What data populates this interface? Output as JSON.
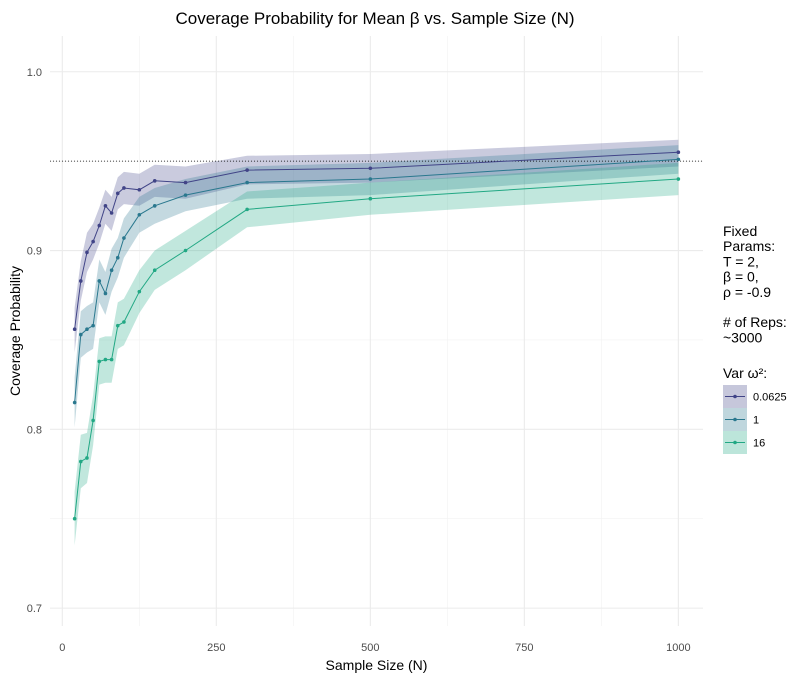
{
  "chart_data": {
    "type": "line",
    "title": "Coverage Probability for Mean β vs. Sample Size (N)",
    "xlabel": "Sample Size (N)",
    "ylabel": "Coverage Probability",
    "xlim": [
      -20,
      1040
    ],
    "ylim": [
      0.69,
      1.02
    ],
    "x_ticks": [
      0,
      250,
      500,
      750,
      1000
    ],
    "x_tick_labels": [
      "0",
      "250",
      "500",
      "750",
      "1000"
    ],
    "y_ticks": [
      0.7,
      0.8,
      0.9,
      1.0
    ],
    "y_tick_labels": [
      "0.7",
      "0.8",
      "0.9",
      "1.0"
    ],
    "grid": true,
    "reference_line": {
      "y": 0.95,
      "style": "dotted"
    },
    "x": [
      20,
      30,
      40,
      50,
      60,
      70,
      80,
      90,
      100,
      125,
      150,
      200,
      300,
      500,
      1000
    ],
    "series": [
      {
        "name": "0.0625",
        "color": "#414487",
        "values": [
          0.856,
          0.883,
          0.899,
          0.905,
          0.914,
          0.925,
          0.921,
          0.932,
          0.935,
          0.934,
          0.939,
          0.938,
          0.945,
          0.946,
          0.955
        ],
        "lower": [
          0.843,
          0.872,
          0.888,
          0.895,
          0.904,
          0.915,
          0.911,
          0.923,
          0.926,
          0.925,
          0.93,
          0.929,
          0.937,
          0.938,
          0.947
        ],
        "upper": [
          0.868,
          0.894,
          0.91,
          0.915,
          0.924,
          0.934,
          0.93,
          0.941,
          0.944,
          0.943,
          0.948,
          0.947,
          0.953,
          0.954,
          0.962
        ]
      },
      {
        "name": "1",
        "color": "#2A788E",
        "values": [
          0.815,
          0.853,
          0.856,
          0.858,
          0.883,
          0.876,
          0.889,
          0.896,
          0.907,
          0.92,
          0.925,
          0.931,
          0.938,
          0.94,
          0.951
        ],
        "lower": [
          0.801,
          0.84,
          0.843,
          0.845,
          0.871,
          0.864,
          0.877,
          0.885,
          0.896,
          0.91,
          0.915,
          0.922,
          0.929,
          0.931,
          0.943
        ],
        "upper": [
          0.829,
          0.866,
          0.869,
          0.871,
          0.895,
          0.888,
          0.901,
          0.907,
          0.918,
          0.93,
          0.935,
          0.94,
          0.947,
          0.949,
          0.959
        ]
      },
      {
        "name": "16",
        "color": "#22A884",
        "values": [
          0.75,
          0.782,
          0.784,
          0.805,
          0.838,
          0.839,
          0.839,
          0.858,
          0.86,
          0.877,
          0.889,
          0.9,
          0.923,
          0.929,
          0.94
        ],
        "lower": [
          0.735,
          0.767,
          0.77,
          0.791,
          0.825,
          0.826,
          0.826,
          0.845,
          0.847,
          0.865,
          0.878,
          0.889,
          0.913,
          0.92,
          0.931
        ],
        "upper": [
          0.765,
          0.797,
          0.798,
          0.819,
          0.851,
          0.852,
          0.852,
          0.871,
          0.873,
          0.889,
          0.9,
          0.911,
          0.933,
          0.938,
          0.949
        ]
      }
    ],
    "legend": {
      "placement": "right",
      "notes": [
        "Fixed",
        "Params:",
        "T = 2,",
        "β = 0,",
        "ρ = -0.9",
        "",
        "# of Reps:",
        "~3000"
      ],
      "title": "Var ω²:",
      "entries": [
        "0.0625",
        "1",
        "16"
      ]
    }
  }
}
